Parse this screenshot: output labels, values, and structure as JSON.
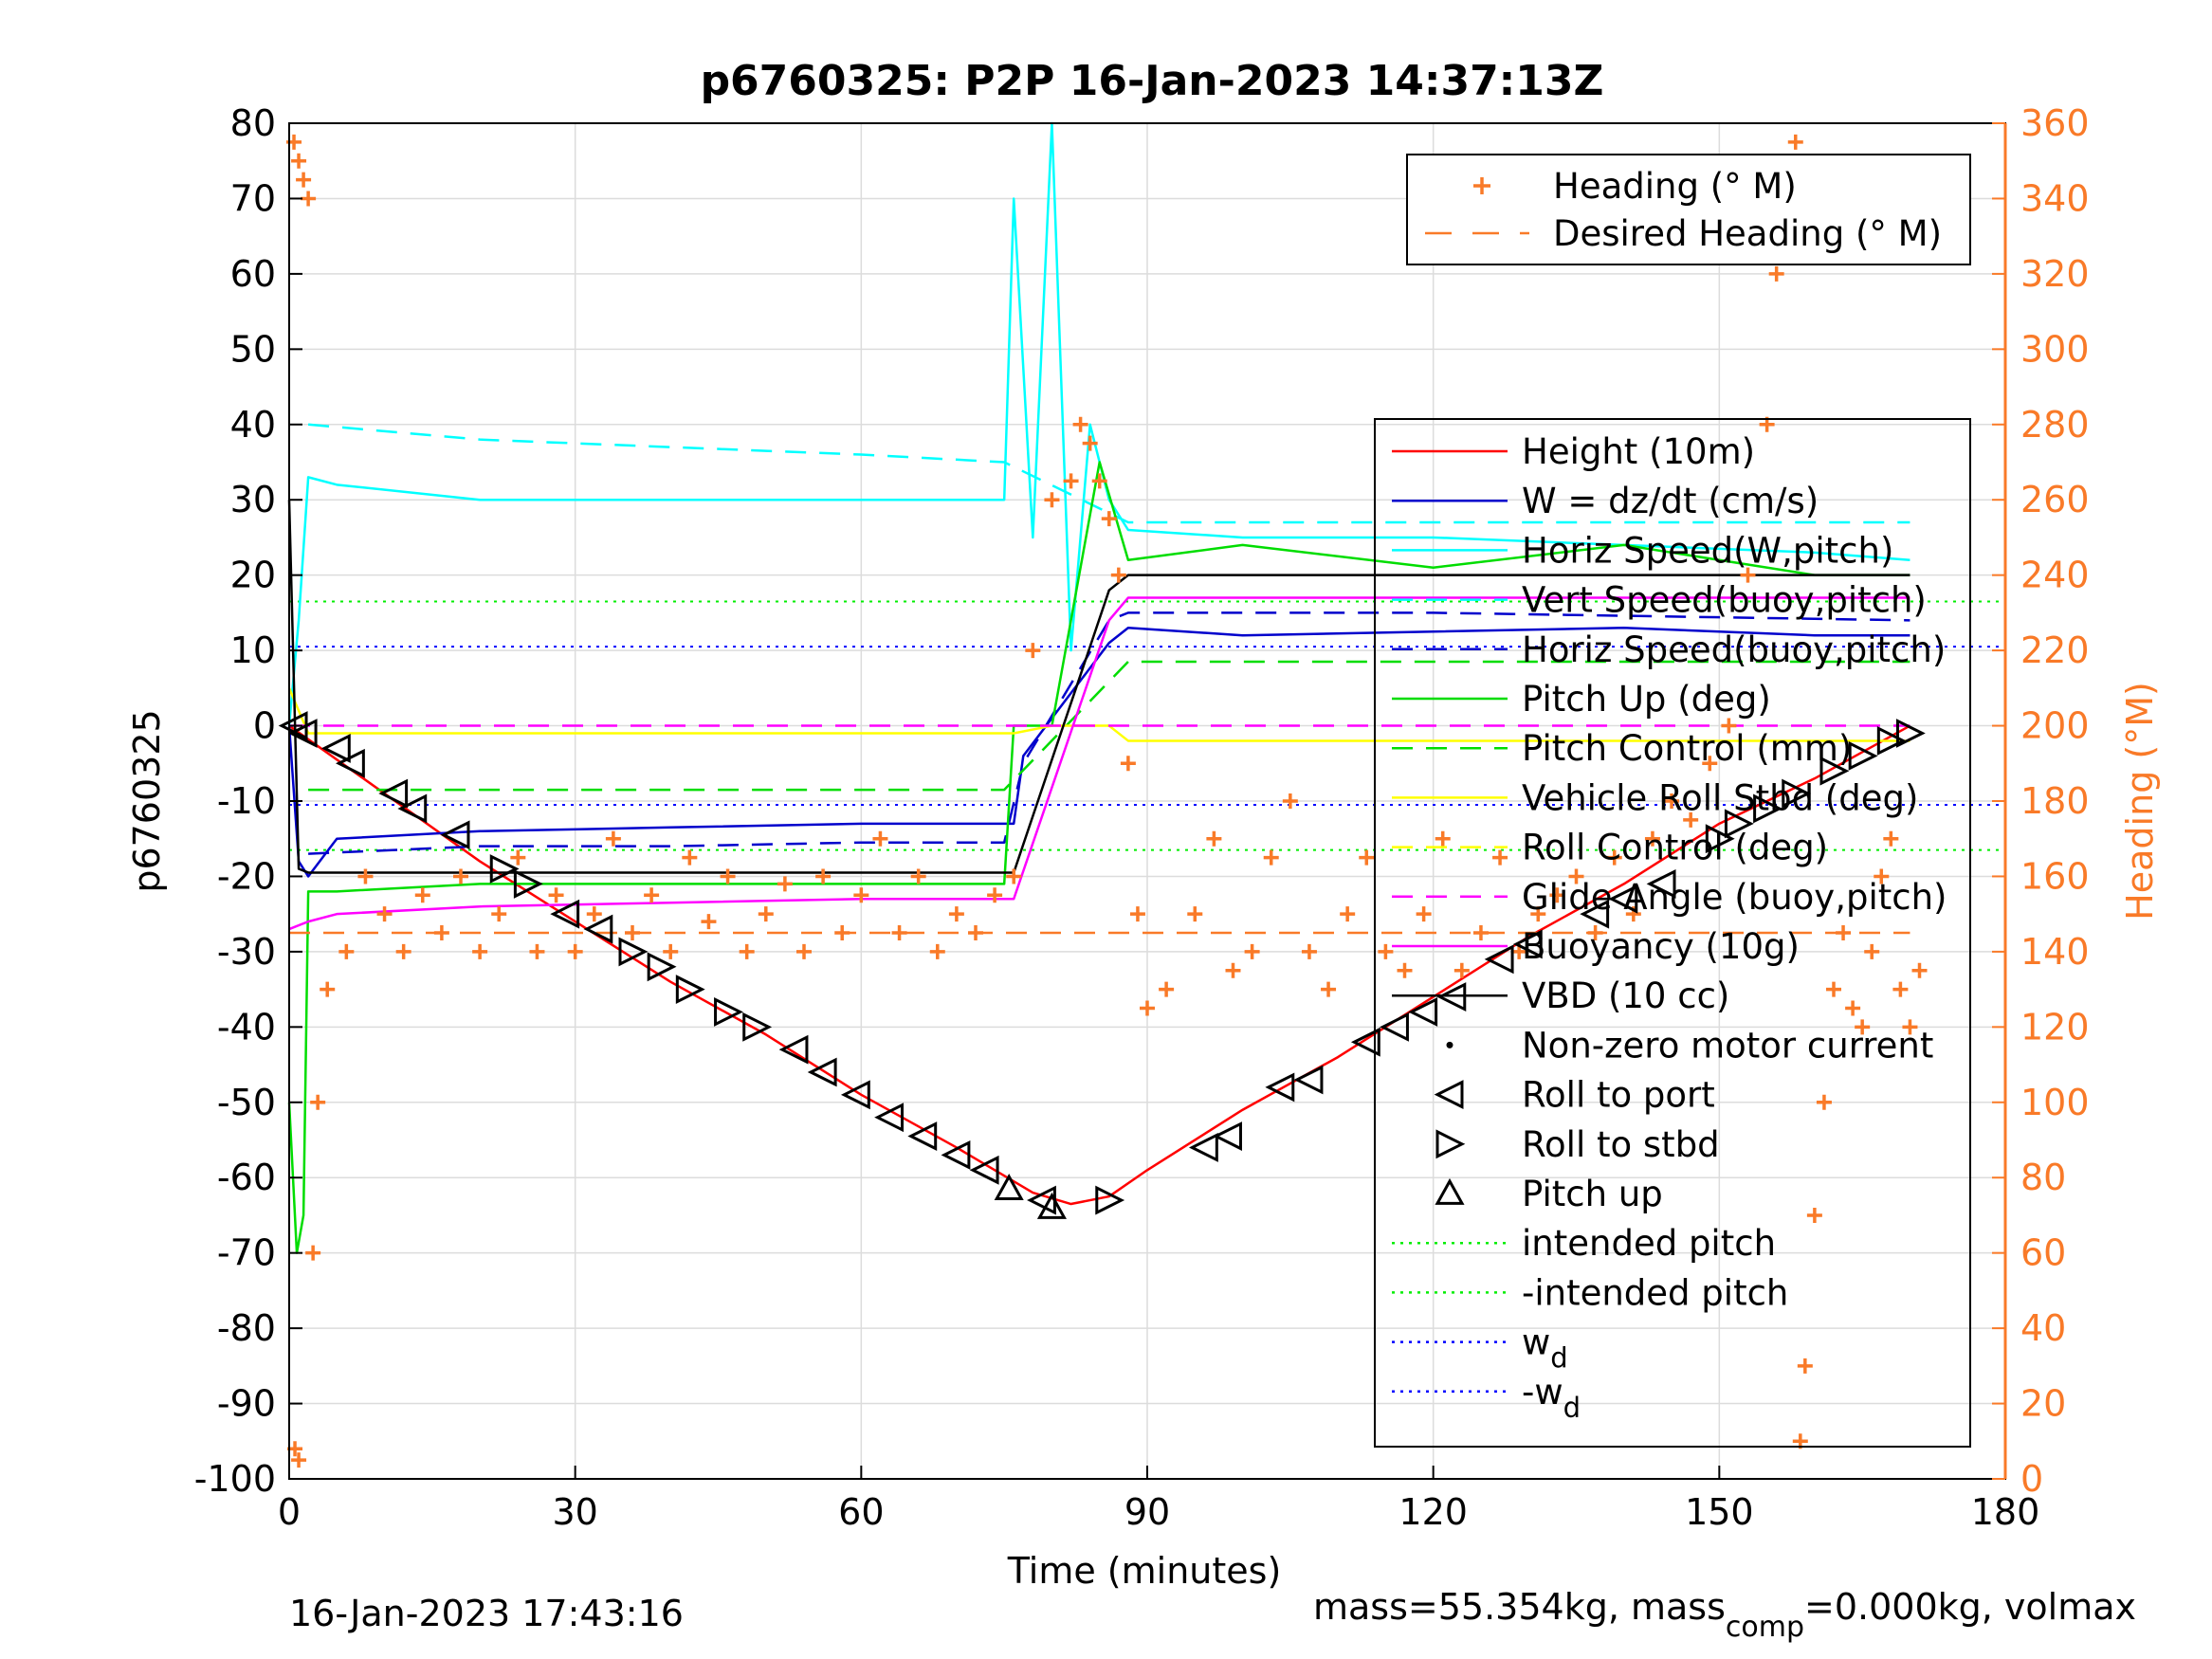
{
  "chart_data": {
    "type": "line",
    "title": "p6760325: P2P 16-Jan-2023 14:37:13Z",
    "xlabel": "Time (minutes)",
    "ylabel": "p6760325",
    "y2label": "Heading (°M)",
    "xlim": [
      0,
      180
    ],
    "ylim": [
      -100,
      80
    ],
    "y2lim": [
      0,
      360
    ],
    "xticks": [
      0,
      30,
      60,
      90,
      120,
      150,
      180
    ],
    "yticks": [
      80,
      70,
      60,
      50,
      40,
      30,
      20,
      10,
      0,
      -10,
      -20,
      -30,
      -40,
      -50,
      -60,
      -70,
      -80,
      -90,
      -100
    ],
    "y2ticks": [
      360,
      340,
      320,
      300,
      280,
      260,
      240,
      220,
      200,
      180,
      160,
      140,
      120,
      100,
      80,
      60,
      40,
      20,
      0
    ],
    "grid": true,
    "footer_left": "16-Jan-2023 17:43:16",
    "footer_right": {
      "a": "mass=55.354kg, mass",
      "sub": "comp",
      "b": "=0.000kg, volmax"
    },
    "colors": {
      "heading": "#f97a28",
      "height": "#ff0000",
      "w": "#0000cc",
      "horiz": "#000000",
      "vert": "#ff00ff",
      "pitch": "#00dd00",
      "roll": "#ffff00",
      "speed": "#00ffff",
      "wd": "#0000ff",
      "intended": "#00ee00",
      "axis_right": "#f97a28"
    },
    "heading_legend": [
      {
        "label": "Heading (° M)",
        "style": "plus"
      },
      {
        "label": "Desired Heading (° M)",
        "style": "dash"
      }
    ],
    "legend": [
      {
        "label": "Height (10m)",
        "color": "#ff0000",
        "style": "solid"
      },
      {
        "label": "W = dz/dt (cm/s)",
        "color": "#0000cc",
        "style": "solid"
      },
      {
        "label": "Horiz Speed(W,pitch)",
        "color": "#00ffff",
        "style": "solid"
      },
      {
        "label": "Vert Speed(buoy,pitch)",
        "color": "#00ffff",
        "style": "dash"
      },
      {
        "label": "Horiz Speed(buoy,pitch)",
        "color": "#0000cc",
        "style": "dash"
      },
      {
        "label": "Pitch Up (deg)",
        "color": "#00dd00",
        "style": "solid"
      },
      {
        "label": "Pitch Control (mm)",
        "color": "#00dd00",
        "style": "dash"
      },
      {
        "label": "Vehicle Roll Stbd (deg)",
        "color": "#ffff00",
        "style": "solid"
      },
      {
        "label": "Roll Control (deg)",
        "color": "#ffff00",
        "style": "dash"
      },
      {
        "label": "Glide Angle (buoy,pitch)",
        "color": "#ff00ff",
        "style": "dash"
      },
      {
        "label": "Buoyancy (10g)",
        "color": "#ff00ff",
        "style": "solid"
      },
      {
        "label": "VBD (10 cc)",
        "color": "#000000",
        "style": "solid"
      },
      {
        "label": "Non-zero motor current",
        "color": "#000000",
        "style": "dot"
      },
      {
        "label": "Roll to port",
        "color": "#000000",
        "style": "tri-left"
      },
      {
        "label": "Roll to stbd",
        "color": "#000000",
        "style": "tri-right"
      },
      {
        "label": "Pitch up",
        "color": "#000000",
        "style": "tri-up"
      },
      {
        "label": "intended pitch",
        "color": "#00ee00",
        "style": "dotted"
      },
      {
        "label": "-intended pitch",
        "color": "#00ee00",
        "style": "dotted"
      },
      {
        "label": "w",
        "sub": "d",
        "color": "#0000ff",
        "style": "dotted"
      },
      {
        "label": "-w",
        "sub": "d",
        "color": "#0000ff",
        "style": "dotted"
      }
    ],
    "series": [
      {
        "name": "Height (10m)",
        "color": "#ff0000",
        "x": [
          0,
          10,
          20,
          30,
          40,
          50,
          60,
          70,
          78,
          82,
          86,
          90,
          100,
          110,
          120,
          130,
          140,
          150,
          160,
          170
        ],
        "y": [
          0,
          -9,
          -18,
          -26,
          -34,
          -41,
          -49,
          -56,
          -62,
          -63.5,
          -62.5,
          -59,
          -51,
          -44,
          -36,
          -28,
          -21,
          -13,
          -7,
          0
        ]
      },
      {
        "name": "W = dz/dt (cm/s)",
        "color": "#0000cc",
        "x": [
          0,
          1,
          2,
          5,
          20,
          40,
          60,
          76,
          77,
          86,
          88,
          100,
          120,
          140,
          160,
          170
        ],
        "y": [
          0,
          -18,
          -20,
          -15,
          -14,
          -13.5,
          -13,
          -13,
          -4,
          11,
          13,
          12,
          12.5,
          13,
          12,
          12
        ]
      },
      {
        "name": "Horiz Speed(W,pitch)",
        "color": "#00ffff",
        "x": [
          0,
          1,
          2,
          5,
          20,
          40,
          60,
          75,
          76,
          78,
          80,
          82,
          84,
          86,
          88,
          100,
          120,
          140,
          160,
          170
        ],
        "y": [
          0,
          14,
          33,
          32,
          30,
          30,
          30,
          30,
          70,
          25,
          80,
          10,
          40,
          30,
          26,
          25,
          25,
          24,
          23,
          22
        ]
      },
      {
        "name": "Vert Speed(buoy,pitch)",
        "color": "#00ffff",
        "x": [
          2,
          20,
          40,
          60,
          75,
          88,
          120,
          170
        ],
        "y": [
          40,
          38,
          37,
          36,
          35,
          27,
          27,
          27
        ]
      },
      {
        "name": "Horiz Speed(buoy,pitch)",
        "color": "#0000cc",
        "x": [
          2,
          20,
          40,
          60,
          75,
          77,
          86,
          88,
          120,
          170
        ],
        "y": [
          -17,
          -16,
          -16,
          -15.5,
          -15.5,
          -5,
          14,
          15,
          15,
          14
        ]
      },
      {
        "name": "Pitch Up (deg)",
        "color": "#00dd00",
        "x": [
          0,
          0.8,
          1.5,
          2,
          5,
          20,
          40,
          60,
          75,
          76,
          80,
          85,
          88,
          100,
          120,
          140,
          160,
          170
        ],
        "y": [
          -50,
          -70,
          -65,
          -22,
          -22,
          -21,
          -21,
          -21,
          -21,
          0,
          0,
          35,
          22,
          24,
          21,
          24,
          20,
          20
        ]
      },
      {
        "name": "Pitch Control (mm)",
        "color": "#00dd00",
        "x": [
          2,
          60,
          75,
          88,
          170
        ],
        "y": [
          -8.5,
          -8.5,
          -8.5,
          8.5,
          8.5
        ]
      },
      {
        "name": "Vehicle Roll Stbd (deg)",
        "color": "#ffff00",
        "x": [
          0,
          2,
          20,
          40,
          60,
          76,
          80,
          86,
          88,
          120,
          150,
          170
        ],
        "y": [
          5,
          -1,
          -1,
          -1,
          -1,
          -1,
          0,
          0,
          -2,
          -2,
          -2,
          -2
        ]
      },
      {
        "name": "Glide Angle (buoy,pitch)",
        "color": "#ff00ff",
        "x": [
          0,
          76,
          88,
          170
        ],
        "y": [
          0,
          0,
          0,
          0
        ]
      },
      {
        "name": "Buoyancy (10g)",
        "color": "#ff00ff",
        "x": [
          0,
          2,
          5,
          20,
          40,
          60,
          76,
          86,
          88,
          120,
          170
        ],
        "y": [
          -27,
          -26,
          -25,
          -24,
          -23.5,
          -23,
          -23,
          14,
          17,
          17,
          17
        ]
      },
      {
        "name": "VBD (10 cc)",
        "color": "#000000",
        "x": [
          0,
          1,
          2,
          20,
          40,
          60,
          76,
          86,
          88,
          120,
          170
        ],
        "y": [
          30,
          -19,
          -19.5,
          -19.5,
          -19.5,
          -19.5,
          -19.5,
          18,
          20,
          20,
          20
        ]
      },
      {
        "name": "Desired Heading (° M)",
        "color": "#f97a28",
        "axis": "right",
        "x": [
          0,
          80,
          88,
          170
        ],
        "y": [
          145,
          145,
          145,
          145
        ]
      }
    ],
    "intended_pitch": 16.5,
    "wd": 10.5,
    "heading_points": [
      {
        "x": 0.5,
        "y": 355
      },
      {
        "x": 1,
        "y": 350
      },
      {
        "x": 1.5,
        "y": 345
      },
      {
        "x": 2,
        "y": 340
      },
      {
        "x": 1,
        "y": 5
      },
      {
        "x": 0.6,
        "y": 8
      },
      {
        "x": 2.5,
        "y": 60
      },
      {
        "x": 3,
        "y": 100
      },
      {
        "x": 4,
        "y": 130
      },
      {
        "x": 6,
        "y": 140
      },
      {
        "x": 8,
        "y": 160
      },
      {
        "x": 10,
        "y": 150
      },
      {
        "x": 12,
        "y": 140
      },
      {
        "x": 14,
        "y": 155
      },
      {
        "x": 16,
        "y": 145
      },
      {
        "x": 18,
        "y": 160
      },
      {
        "x": 20,
        "y": 140
      },
      {
        "x": 22,
        "y": 150
      },
      {
        "x": 24,
        "y": 165
      },
      {
        "x": 26,
        "y": 140
      },
      {
        "x": 28,
        "y": 155
      },
      {
        "x": 30,
        "y": 140
      },
      {
        "x": 32,
        "y": 150
      },
      {
        "x": 34,
        "y": 170
      },
      {
        "x": 36,
        "y": 145
      },
      {
        "x": 38,
        "y": 155
      },
      {
        "x": 40,
        "y": 140
      },
      {
        "x": 42,
        "y": 165
      },
      {
        "x": 44,
        "y": 148
      },
      {
        "x": 46,
        "y": 160
      },
      {
        "x": 48,
        "y": 140
      },
      {
        "x": 50,
        "y": 150
      },
      {
        "x": 52,
        "y": 158
      },
      {
        "x": 54,
        "y": 140
      },
      {
        "x": 56,
        "y": 160
      },
      {
        "x": 58,
        "y": 145
      },
      {
        "x": 60,
        "y": 155
      },
      {
        "x": 62,
        "y": 170
      },
      {
        "x": 64,
        "y": 145
      },
      {
        "x": 66,
        "y": 160
      },
      {
        "x": 68,
        "y": 140
      },
      {
        "x": 70,
        "y": 150
      },
      {
        "x": 72,
        "y": 145
      },
      {
        "x": 74,
        "y": 155
      },
      {
        "x": 76,
        "y": 160
      },
      {
        "x": 78,
        "y": 220
      },
      {
        "x": 80,
        "y": 260
      },
      {
        "x": 82,
        "y": 265
      },
      {
        "x": 83,
        "y": 280
      },
      {
        "x": 84,
        "y": 275
      },
      {
        "x": 85,
        "y": 265
      },
      {
        "x": 86,
        "y": 255
      },
      {
        "x": 87,
        "y": 240
      },
      {
        "x": 88,
        "y": 190
      },
      {
        "x": 89,
        "y": 150
      },
      {
        "x": 90,
        "y": 125
      },
      {
        "x": 92,
        "y": 130
      },
      {
        "x": 95,
        "y": 150
      },
      {
        "x": 97,
        "y": 170
      },
      {
        "x": 99,
        "y": 135
      },
      {
        "x": 101,
        "y": 140
      },
      {
        "x": 103,
        "y": 165
      },
      {
        "x": 105,
        "y": 180
      },
      {
        "x": 107,
        "y": 140
      },
      {
        "x": 109,
        "y": 130
      },
      {
        "x": 111,
        "y": 150
      },
      {
        "x": 113,
        "y": 165
      },
      {
        "x": 115,
        "y": 140
      },
      {
        "x": 117,
        "y": 135
      },
      {
        "x": 119,
        "y": 150
      },
      {
        "x": 121,
        "y": 170
      },
      {
        "x": 123,
        "y": 135
      },
      {
        "x": 125,
        "y": 145
      },
      {
        "x": 127,
        "y": 165
      },
      {
        "x": 129,
        "y": 140
      },
      {
        "x": 131,
        "y": 150
      },
      {
        "x": 133,
        "y": 155
      },
      {
        "x": 135,
        "y": 160
      },
      {
        "x": 137,
        "y": 145
      },
      {
        "x": 139,
        "y": 165
      },
      {
        "x": 141,
        "y": 150
      },
      {
        "x": 143,
        "y": 170
      },
      {
        "x": 145,
        "y": 180
      },
      {
        "x": 147,
        "y": 175
      },
      {
        "x": 149,
        "y": 190
      },
      {
        "x": 151,
        "y": 200
      },
      {
        "x": 153,
        "y": 240
      },
      {
        "x": 155,
        "y": 280
      },
      {
        "x": 156,
        "y": 320
      },
      {
        "x": 157,
        "y": 345
      },
      {
        "x": 158,
        "y": 355
      },
      {
        "x": 158.5,
        "y": 10
      },
      {
        "x": 159,
        "y": 30
      },
      {
        "x": 160,
        "y": 70
      },
      {
        "x": 161,
        "y": 100
      },
      {
        "x": 162,
        "y": 130
      },
      {
        "x": 163,
        "y": 145
      },
      {
        "x": 164,
        "y": 125
      },
      {
        "x": 165,
        "y": 120
      },
      {
        "x": 166,
        "y": 140
      },
      {
        "x": 167,
        "y": 160
      },
      {
        "x": 168,
        "y": 170
      },
      {
        "x": 169,
        "y": 130
      },
      {
        "x": 170,
        "y": 120
      },
      {
        "x": 171,
        "y": 135
      }
    ],
    "markers": [
      {
        "x": 0.5,
        "y": 0,
        "type": "tri-left"
      },
      {
        "x": 1.5,
        "y": -1,
        "type": "tri-left"
      },
      {
        "x": 5,
        "y": -3,
        "type": "tri-left"
      },
      {
        "x": 6.5,
        "y": -5,
        "type": "tri-left"
      },
      {
        "x": 11,
        "y": -9,
        "type": "tri-left"
      },
      {
        "x": 13,
        "y": -11,
        "type": "tri-left"
      },
      {
        "x": 17.5,
        "y": -14.5,
        "type": "tri-left"
      },
      {
        "x": 22.5,
        "y": -19,
        "type": "tri-right"
      },
      {
        "x": 25,
        "y": -21,
        "type": "tri-right"
      },
      {
        "x": 29,
        "y": -25,
        "type": "tri-left"
      },
      {
        "x": 32.5,
        "y": -27,
        "type": "tri-left"
      },
      {
        "x": 36,
        "y": -30,
        "type": "tri-right"
      },
      {
        "x": 39,
        "y": -32,
        "type": "tri-right"
      },
      {
        "x": 42,
        "y": -35,
        "type": "tri-right"
      },
      {
        "x": 46,
        "y": -38,
        "type": "tri-right"
      },
      {
        "x": 49,
        "y": -40,
        "type": "tri-right"
      },
      {
        "x": 53,
        "y": -43,
        "type": "tri-left"
      },
      {
        "x": 56,
        "y": -46,
        "type": "tri-left"
      },
      {
        "x": 59.5,
        "y": -49,
        "type": "tri-left"
      },
      {
        "x": 63,
        "y": -52,
        "type": "tri-left"
      },
      {
        "x": 66.5,
        "y": -54.5,
        "type": "tri-left"
      },
      {
        "x": 70,
        "y": -57,
        "type": "tri-left"
      },
      {
        "x": 73,
        "y": -59,
        "type": "tri-left"
      },
      {
        "x": 75.5,
        "y": -61.5,
        "type": "tri-up"
      },
      {
        "x": 79,
        "y": -63,
        "type": "tri-left"
      },
      {
        "x": 80,
        "y": -64,
        "type": "tri-up"
      },
      {
        "x": 86,
        "y": -63,
        "type": "tri-right"
      },
      {
        "x": 96,
        "y": -56,
        "type": "tri-left"
      },
      {
        "x": 98.5,
        "y": -54.5,
        "type": "tri-left"
      },
      {
        "x": 104,
        "y": -48,
        "type": "tri-left"
      },
      {
        "x": 107,
        "y": -47,
        "type": "tri-left"
      },
      {
        "x": 113,
        "y": -42,
        "type": "tri-left"
      },
      {
        "x": 116,
        "y": -40,
        "type": "tri-left"
      },
      {
        "x": 119,
        "y": -38,
        "type": "tri-left"
      },
      {
        "x": 122,
        "y": -36,
        "type": "tri-left"
      },
      {
        "x": 127,
        "y": -31,
        "type": "tri-left"
      },
      {
        "x": 130,
        "y": -29,
        "type": "tri-left"
      },
      {
        "x": 137,
        "y": -25,
        "type": "tri-left"
      },
      {
        "x": 140,
        "y": -23,
        "type": "tri-left"
      },
      {
        "x": 144,
        "y": -21,
        "type": "tri-left"
      },
      {
        "x": 150,
        "y": -15,
        "type": "tri-right"
      },
      {
        "x": 152,
        "y": -13,
        "type": "tri-right"
      },
      {
        "x": 155,
        "y": -11,
        "type": "tri-right"
      },
      {
        "x": 158,
        "y": -9,
        "type": "tri-right"
      },
      {
        "x": 162,
        "y": -6,
        "type": "tri-right"
      },
      {
        "x": 165,
        "y": -4,
        "type": "tri-right"
      },
      {
        "x": 168,
        "y": -2,
        "type": "tri-right"
      },
      {
        "x": 170,
        "y": -1,
        "type": "tri-right"
      }
    ]
  }
}
